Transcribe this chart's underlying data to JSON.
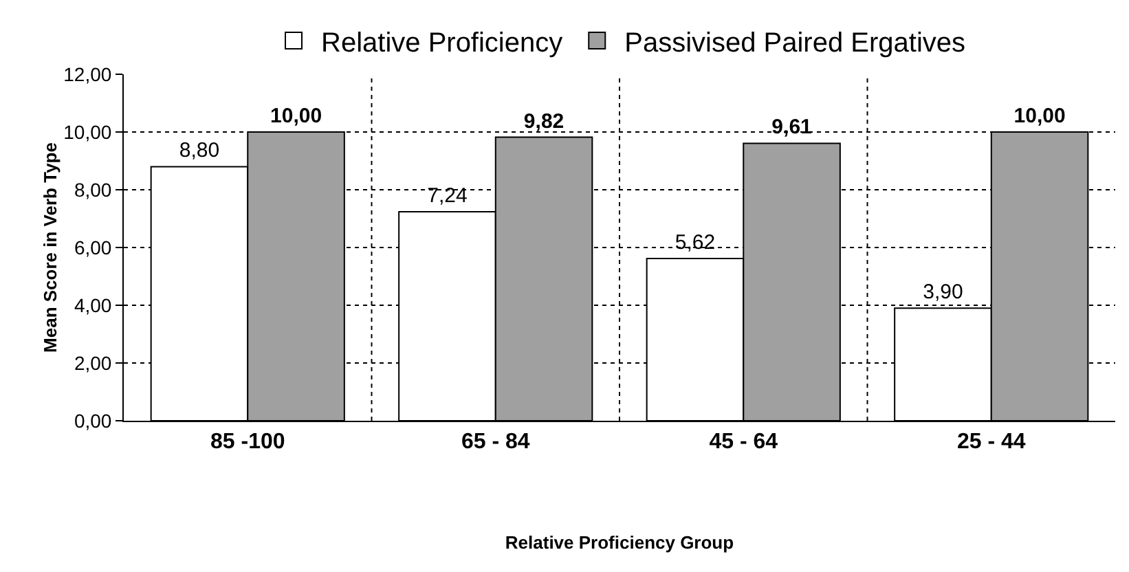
{
  "chart_data": {
    "type": "bar",
    "xlabel": "Relative Proficiency Group",
    "ylabel": "Mean Score in Verb Type",
    "categories": [
      "85 -100",
      "65 - 84",
      "45 - 64",
      "25 - 44"
    ],
    "series": [
      {
        "name": "Relative Proficiency",
        "color": "#ffffff",
        "values": [
          8.8,
          7.24,
          5.62,
          3.9
        ],
        "value_labels": [
          "8,80",
          "7,24",
          "5,62",
          "3,90"
        ]
      },
      {
        "name": "Passivised Paired Ergatives",
        "color": "#a0a0a0",
        "values": [
          10.0,
          9.82,
          9.61,
          10.0
        ],
        "value_labels": [
          "10,00",
          "9,82",
          "9,61",
          "10,00"
        ]
      }
    ],
    "ylim": [
      0,
      12
    ],
    "yticks": [
      {
        "value": 0,
        "label": "0,00"
      },
      {
        "value": 2,
        "label": "2,00"
      },
      {
        "value": 4,
        "label": "4,00"
      },
      {
        "value": 6,
        "label": "6,00"
      },
      {
        "value": 8,
        "label": "8,00"
      },
      {
        "value": 10,
        "label": "10,00"
      },
      {
        "value": 12,
        "label": "12,00"
      }
    ],
    "grid": true,
    "legend": "top"
  }
}
